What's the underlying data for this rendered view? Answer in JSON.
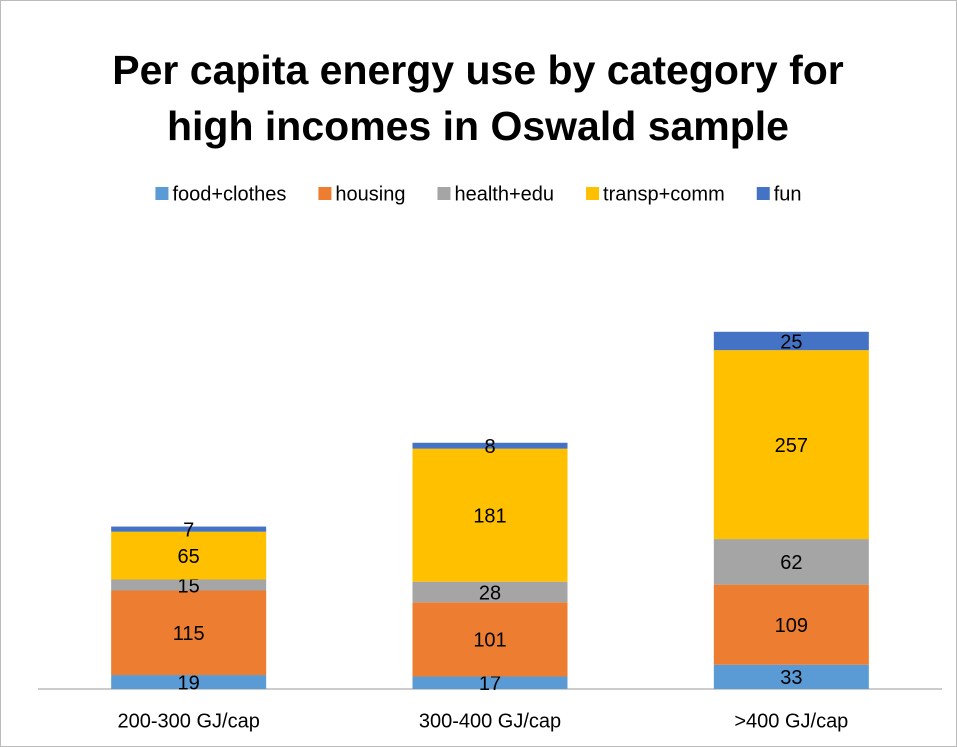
{
  "chart_data": {
    "type": "stacked-bar",
    "title": "Per capita energy use by category for high incomes in Oswald sample",
    "categories": [
      "200-300 GJ/cap",
      "300-400 GJ/cap",
      ">400 GJ/cap"
    ],
    "series": [
      {
        "name": "food+clothes",
        "color": "#5b9bd5",
        "values": [
          19,
          17,
          33
        ]
      },
      {
        "name": "housing",
        "color": "#ed7d31",
        "values": [
          115,
          101,
          109
        ]
      },
      {
        "name": "health+edu",
        "color": "#a5a5a5",
        "values": [
          15,
          28,
          62
        ]
      },
      {
        "name": "transp+comm",
        "color": "#ffc000",
        "values": [
          65,
          181,
          257
        ]
      },
      {
        "name": "fun",
        "color": "#4472c4",
        "values": [
          7,
          8,
          25
        ]
      }
    ],
    "legend": "top"
  }
}
